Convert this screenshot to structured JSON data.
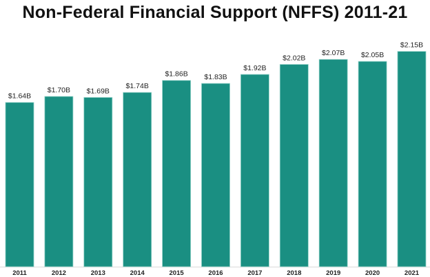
{
  "chart_data": {
    "type": "bar",
    "title": "Non-Federal Financial Support (NFFS) 2011-21",
    "xlabel": "",
    "ylabel": "",
    "categories": [
      "2011",
      "2012",
      "2013",
      "2014",
      "2015",
      "2016",
      "2017",
      "2018",
      "2019",
      "2020",
      "2021"
    ],
    "values": [
      1.64,
      1.7,
      1.69,
      1.74,
      1.86,
      1.83,
      1.92,
      2.02,
      2.07,
      2.05,
      2.15
    ],
    "data_labels": [
      "$1.64B",
      "$1.70B",
      "$1.69B",
      "$1.74B",
      "$1.86B",
      "$1.83B",
      "$1.92B",
      "$2.02B",
      "$2.07B",
      "$2.05B",
      "$2.15B"
    ],
    "unit": "billion USD",
    "ylim": [
      0,
      2.15
    ],
    "grid": false,
    "legend": "none",
    "bar_color": "#1a8f82"
  }
}
